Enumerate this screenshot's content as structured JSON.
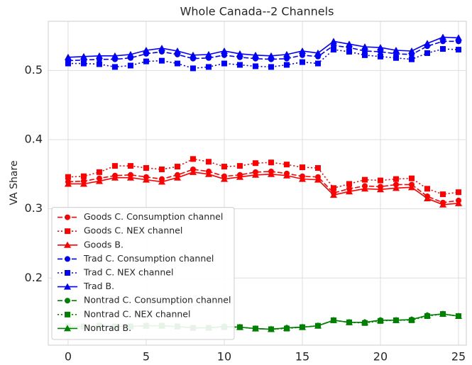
{
  "chart_data": {
    "type": "line",
    "title": "Whole Canada--2 Channels",
    "y_label": "VA Share",
    "x": [
      0,
      1,
      2,
      3,
      4,
      5,
      6,
      7,
      8,
      9,
      10,
      11,
      12,
      13,
      14,
      15,
      16,
      17,
      18,
      19,
      20,
      21,
      22,
      23,
      24,
      25
    ],
    "xlim": [
      -1.27,
      25.5
    ],
    "ylim": [
      0.103,
      0.571
    ],
    "xticks": [
      0,
      5,
      10,
      15,
      20,
      25
    ],
    "yticks": [
      0.2,
      0.3,
      0.4,
      0.5
    ],
    "grid": true,
    "legend": "lower left",
    "series": [
      {
        "name": "Goods C. Consumption channel",
        "color": "#ff0000",
        "dash": "dashed",
        "marker": "circle",
        "values": [
          0.339,
          0.34,
          0.344,
          0.348,
          0.349,
          0.346,
          0.343,
          0.349,
          0.357,
          0.354,
          0.347,
          0.349,
          0.353,
          0.354,
          0.351,
          0.347,
          0.346,
          0.323,
          0.329,
          0.333,
          0.332,
          0.335,
          0.335,
          0.318,
          0.309,
          0.312
        ]
      },
      {
        "name": "Goods C. NEX channel",
        "color": "#ff0000",
        "dash": "dotted",
        "marker": "square",
        "values": [
          0.346,
          0.347,
          0.353,
          0.362,
          0.362,
          0.359,
          0.357,
          0.361,
          0.372,
          0.368,
          0.361,
          0.362,
          0.366,
          0.367,
          0.364,
          0.36,
          0.359,
          0.33,
          0.336,
          0.342,
          0.341,
          0.343,
          0.344,
          0.329,
          0.321,
          0.324
        ]
      },
      {
        "name": "Goods B.",
        "color": "#ff0000",
        "dash": "solid",
        "marker": "triangle",
        "values": [
          0.336,
          0.336,
          0.34,
          0.345,
          0.345,
          0.342,
          0.339,
          0.345,
          0.353,
          0.35,
          0.343,
          0.346,
          0.349,
          0.35,
          0.348,
          0.343,
          0.342,
          0.32,
          0.325,
          0.329,
          0.328,
          0.33,
          0.331,
          0.315,
          0.306,
          0.308
        ]
      },
      {
        "name": "Trad C. Consumption channel",
        "color": "#0000ff",
        "dash": "dashed",
        "marker": "circle",
        "values": [
          0.514,
          0.515,
          0.516,
          0.516,
          0.518,
          0.524,
          0.527,
          0.523,
          0.517,
          0.518,
          0.522,
          0.519,
          0.517,
          0.516,
          0.517,
          0.522,
          0.52,
          0.536,
          0.533,
          0.528,
          0.527,
          0.524,
          0.523,
          0.535,
          0.542,
          0.542
        ]
      },
      {
        "name": "Trad C. NEX channel",
        "color": "#0000ff",
        "dash": "dotted",
        "marker": "square",
        "values": [
          0.51,
          0.51,
          0.509,
          0.505,
          0.507,
          0.513,
          0.514,
          0.51,
          0.503,
          0.505,
          0.51,
          0.508,
          0.506,
          0.505,
          0.508,
          0.512,
          0.51,
          0.53,
          0.527,
          0.522,
          0.52,
          0.518,
          0.516,
          0.525,
          0.531,
          0.53
        ]
      },
      {
        "name": "Trad B.",
        "color": "#0000ff",
        "dash": "solid",
        "marker": "triangle",
        "values": [
          0.519,
          0.52,
          0.521,
          0.521,
          0.523,
          0.529,
          0.532,
          0.528,
          0.522,
          0.523,
          0.528,
          0.524,
          0.522,
          0.521,
          0.523,
          0.528,
          0.525,
          0.542,
          0.538,
          0.534,
          0.533,
          0.529,
          0.528,
          0.539,
          0.548,
          0.547
        ]
      },
      {
        "name": "Nontrad C. Consumption channel",
        "color": "#008000",
        "dash": "dashed",
        "marker": "circle",
        "values": [
          0.13,
          0.13,
          0.131,
          0.13,
          0.13,
          0.131,
          0.131,
          0.13,
          0.128,
          0.128,
          0.13,
          0.129,
          0.127,
          0.126,
          0.128,
          0.129,
          0.131,
          0.139,
          0.136,
          0.136,
          0.139,
          0.139,
          0.14,
          0.146,
          0.148,
          0.145
        ]
      },
      {
        "name": "Nontrad C. NEX channel",
        "color": "#008000",
        "dash": "dotted",
        "marker": "square",
        "values": [
          0.13,
          0.13,
          0.131,
          0.13,
          0.13,
          0.131,
          0.131,
          0.13,
          0.128,
          0.128,
          0.129,
          0.129,
          0.127,
          0.126,
          0.127,
          0.129,
          0.131,
          0.139,
          0.136,
          0.135,
          0.138,
          0.139,
          0.139,
          0.145,
          0.148,
          0.145
        ]
      },
      {
        "name": "Nontrad B.",
        "color": "#008000",
        "dash": "solid",
        "marker": "triangle",
        "values": [
          0.13,
          0.13,
          0.131,
          0.13,
          0.13,
          0.131,
          0.131,
          0.13,
          0.128,
          0.128,
          0.13,
          0.129,
          0.127,
          0.126,
          0.128,
          0.129,
          0.131,
          0.139,
          0.136,
          0.136,
          0.139,
          0.139,
          0.14,
          0.146,
          0.148,
          0.145
        ]
      }
    ]
  }
}
